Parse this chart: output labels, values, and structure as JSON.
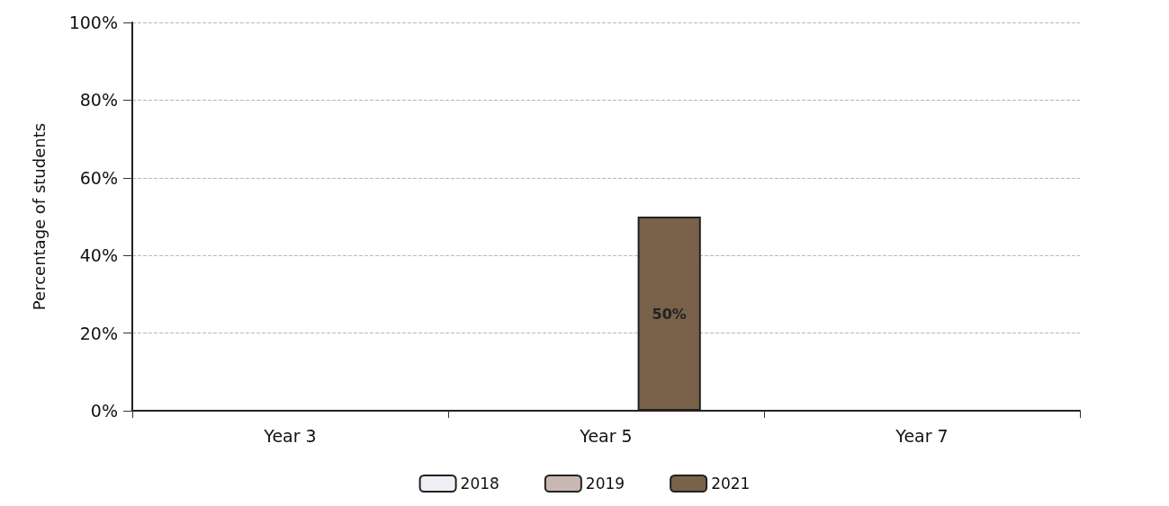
{
  "chart_data": {
    "type": "bar",
    "ylabel": "Percentage of students",
    "categories": [
      "Year 3",
      "Year 5",
      "Year 7"
    ],
    "series": [
      {
        "name": "2018",
        "color": "#f1eff6",
        "values": [
          null,
          null,
          null
        ]
      },
      {
        "name": "2019",
        "color": "#c9b8b1",
        "values": [
          null,
          null,
          null
        ]
      },
      {
        "name": "2021",
        "color": "#7a6149",
        "values": [
          null,
          50,
          null
        ],
        "value_labels": [
          null,
          "50%",
          null
        ]
      }
    ],
    "ylim": [
      0,
      100
    ],
    "yticks": [
      {
        "value": 0,
        "label": "0%"
      },
      {
        "value": 20,
        "label": "20%"
      },
      {
        "value": 40,
        "label": "40%"
      },
      {
        "value": 60,
        "label": "60%"
      },
      {
        "value": 80,
        "label": "80%"
      },
      {
        "value": 100,
        "label": "100%"
      }
    ],
    "grid": "y",
    "legend": "bottom"
  }
}
